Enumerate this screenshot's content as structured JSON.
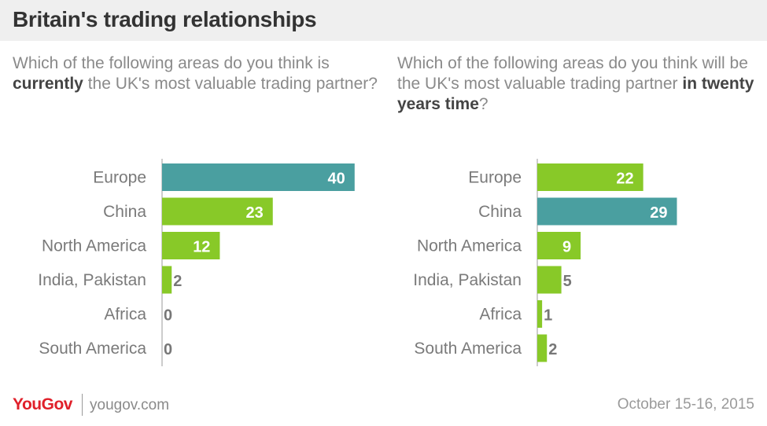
{
  "title": "Britain's trading relationships",
  "colors": {
    "highlight": "#4a9fa0",
    "bar": "#88c928",
    "text_inside": "#ffffff",
    "text_outside": "#777777",
    "axis": "#cccccc"
  },
  "left": {
    "question_pre": "Which of the following areas do you think is ",
    "question_bold": "currently",
    "question_post": " the UK's most valuable trading partner?"
  },
  "right": {
    "question_pre": "Which of the following areas do you think will be the UK's most valuable trading partner ",
    "question_bold": "in twenty years time",
    "question_post": "?"
  },
  "chart_data": [
    {
      "type": "bar",
      "orientation": "horizontal",
      "categories": [
        "Europe",
        "China",
        "North America",
        "India, Pakistan",
        "Africa",
        "South America"
      ],
      "values": [
        40,
        23,
        12,
        2,
        0,
        0
      ],
      "highlight_index": 0
    },
    {
      "type": "bar",
      "orientation": "horizontal",
      "categories": [
        "Europe",
        "China",
        "North America",
        "India, Pakistan",
        "Africa",
        "South America"
      ],
      "values": [
        22,
        29,
        9,
        5,
        1,
        2
      ],
      "highlight_index": 1
    }
  ],
  "footer": {
    "brand": "YouGov",
    "url": "yougov.com",
    "date": "October 15-16, 2015"
  }
}
